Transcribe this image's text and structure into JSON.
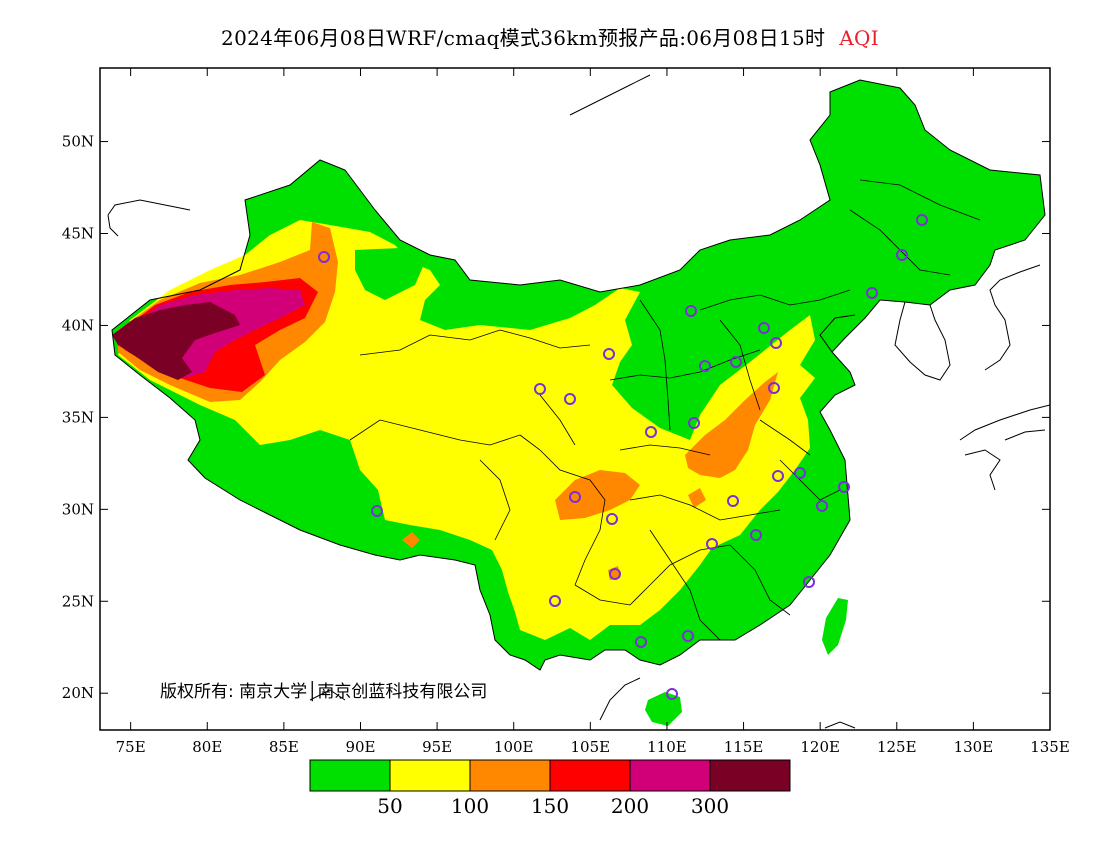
{
  "title": {
    "text": "2024年06月08日WRF/cmaq模式36km预报产品:06月08日15时",
    "variable": "AQI",
    "variable_color": "#e8212b"
  },
  "map": {
    "lon_range": [
      73,
      135
    ],
    "lat_range": [
      18,
      54
    ],
    "x_ticks": [
      "75E",
      "80E",
      "85E",
      "90E",
      "95E",
      "100E",
      "105E",
      "110E",
      "115E",
      "120E",
      "125E",
      "130E",
      "135E"
    ],
    "y_ticks": [
      "50N",
      "45N",
      "40N",
      "35N",
      "30N",
      "25N",
      "20N"
    ],
    "copyright": "版权所有: 南京大学│南京创蓝科技有限公司",
    "station_marker_color": "#7b2fd6",
    "station_marker": "circle-outline"
  },
  "legend": {
    "colors": [
      "#00e000",
      "#ffff00",
      "#ff8800",
      "#ff0000",
      "#d20078",
      "#7a0026"
    ],
    "labels": [
      "50",
      "100",
      "150",
      "200",
      "300"
    ]
  }
}
